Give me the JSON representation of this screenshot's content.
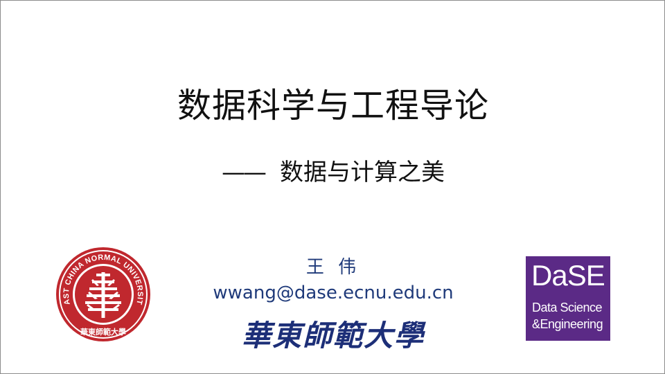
{
  "slide": {
    "title": "数据科学与工程导论",
    "subtitle_dash": "——",
    "subtitle": "数据与计算之美",
    "author": "王 伟",
    "email": "wwang@dase.ecnu.edu.cn",
    "calligraphy": "華東師範大學"
  },
  "ecnu_logo": {
    "ring_text": "EAST CHINA NORMAL UNIVERSITY",
    "bottom_text": "華東師範大學",
    "color": "#c0282e"
  },
  "dase_logo": {
    "abbr": "DaSE",
    "line1": "Data Science",
    "line2": "&Engineering",
    "color": "#5b2a86"
  },
  "colors": {
    "title": "#111111",
    "author": "#1f3a7a"
  }
}
